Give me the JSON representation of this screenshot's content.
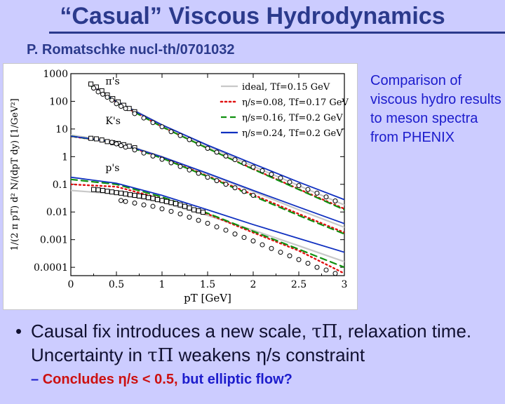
{
  "slide": {
    "title": "“Casual” Viscous Hydrodynamics",
    "subtitle": "P. Romatschke nucl-th/0701032",
    "comment": "Comparison of viscous hydro results to meson spectra from PHENIX",
    "bullet1": {
      "marker": "•",
      "part1": "Causal fix introduces a new scale,",
      "tau_symbol": "τΠ",
      "part2": ", relaxation time. Uncertainty in",
      "tau_symbol_2": "τΠ",
      "part3": "weakens",
      "eta_symbol": "η",
      "part4": "/s constraint"
    },
    "bullet2": {
      "dash": "–",
      "red_text": "Concludes η/s < 0.5,",
      "blue_text": "but elliptic flow?"
    }
  },
  "chart_data": {
    "type": "line",
    "xlabel": "pT [GeV]",
    "ylabel": "1/(2 π pT) d² N/(dpT dy) [1/GeV²]",
    "xlim": [
      0,
      3
    ],
    "ylim": [
      5e-05,
      1000
    ],
    "y_scale": "log",
    "x_ticks": [
      "0",
      "0.5",
      "1",
      "1.5",
      "2",
      "2.5",
      "3"
    ],
    "y_ticks": [
      "0.0001",
      "0.001",
      "0.01",
      "0.1",
      "1",
      "10",
      "100",
      "1000"
    ],
    "legend_position": "top-right",
    "legend": [
      {
        "label": "ideal, Tf=0.15 GeV",
        "color": "#c8c8c8",
        "style": "solid"
      },
      {
        "label": "η/s=0.08, Tf=0.17 GeV",
        "color": "#e01010",
        "style": "dotted"
      },
      {
        "label": "η/s=0.16, Tf=0.2 GeV",
        "color": "#109010",
        "style": "dashed"
      },
      {
        "label": "η/s=0.24, Tf=0.2 GeV",
        "color": "#1030c0",
        "style": "solid"
      }
    ],
    "particles": [
      {
        "label": "π's",
        "label_pos": {
          "x": 0.38,
          "y": 400
        },
        "curves": {
          "ideal": [
            [
              0.2,
              500
            ],
            [
              0.5,
              105
            ],
            [
              1.0,
              14
            ],
            [
              1.5,
              2.4
            ],
            [
              2.0,
              0.45
            ],
            [
              2.5,
              0.09
            ],
            [
              3.0,
              0.018
            ]
          ],
          "eta008": [
            [
              0.2,
              430
            ],
            [
              0.5,
              92
            ],
            [
              1.0,
              12
            ],
            [
              1.5,
              2.0
            ],
            [
              2.0,
              0.36
            ],
            [
              2.5,
              0.067
            ],
            [
              3.0,
              0.013
            ]
          ],
          "eta016": [
            [
              0.2,
              400
            ],
            [
              0.5,
              90
            ],
            [
              1.0,
              12
            ],
            [
              1.5,
              2.0
            ],
            [
              2.0,
              0.35
            ],
            [
              2.5,
              0.065
            ],
            [
              3.0,
              0.012
            ]
          ],
          "eta024": [
            [
              0.2,
              420
            ],
            [
              0.5,
              96
            ],
            [
              1.0,
              14
            ],
            [
              1.5,
              2.6
            ],
            [
              2.0,
              0.55
            ],
            [
              2.5,
              0.12
            ],
            [
              3.0,
              0.028
            ]
          ]
        },
        "squares": [
          [
            0.22,
            420
          ],
          [
            0.28,
            330
          ],
          [
            0.34,
            240
          ],
          [
            0.4,
            170
          ],
          [
            0.46,
            125
          ],
          [
            0.52,
            95
          ],
          [
            0.58,
            72
          ],
          [
            0.64,
            55
          ],
          [
            0.7,
            42
          ]
        ],
        "circles": [
          [
            0.25,
            300
          ],
          [
            0.3,
            220
          ],
          [
            0.35,
            180
          ],
          [
            0.4,
            140
          ],
          [
            0.45,
            110
          ],
          [
            0.5,
            82
          ],
          [
            0.55,
            66
          ],
          [
            0.6,
            55
          ],
          [
            0.7,
            36
          ],
          [
            0.8,
            25
          ],
          [
            0.9,
            17
          ],
          [
            1.0,
            12
          ],
          [
            1.1,
            8
          ],
          [
            1.2,
            5.8
          ],
          [
            1.3,
            4.1
          ],
          [
            1.4,
            2.9
          ],
          [
            1.5,
            2.0
          ],
          [
            1.6,
            1.45
          ],
          [
            1.7,
            1.05
          ],
          [
            1.8,
            0.78
          ],
          [
            1.9,
            0.58
          ],
          [
            2.0,
            0.42
          ],
          [
            2.1,
            0.31
          ],
          [
            2.2,
            0.23
          ],
          [
            2.3,
            0.17
          ],
          [
            2.4,
            0.12
          ],
          [
            2.5,
            0.09
          ],
          [
            2.6,
            0.065
          ],
          [
            2.7,
            0.048
          ],
          [
            2.8,
            0.035
          ],
          [
            2.9,
            0.025
          ]
        ]
      },
      {
        "label": "K's",
        "label_pos": {
          "x": 0.38,
          "y": 15
        },
        "curves": {
          "ideal": [
            [
              0.0,
              6
            ],
            [
              0.5,
              3.5
            ],
            [
              1.0,
              1.0
            ],
            [
              1.5,
              0.24
            ],
            [
              2.0,
              0.055
            ],
            [
              2.5,
              0.012
            ],
            [
              3.0,
              0.0028
            ]
          ],
          "eta008": [
            [
              0.0,
              5.4
            ],
            [
              0.5,
              3.2
            ],
            [
              1.0,
              0.92
            ],
            [
              1.5,
              0.2
            ],
            [
              2.0,
              0.042
            ],
            [
              2.5,
              0.0085
            ],
            [
              3.0,
              0.0018
            ]
          ],
          "eta016": [
            [
              0.0,
              5.5
            ],
            [
              0.5,
              3.2
            ],
            [
              1.0,
              0.88
            ],
            [
              1.5,
              0.19
            ],
            [
              2.0,
              0.038
            ],
            [
              2.5,
              0.0075
            ],
            [
              3.0,
              0.0016
            ]
          ],
          "eta024": [
            [
              0.0,
              5.5
            ],
            [
              0.5,
              3.3
            ],
            [
              1.0,
              0.98
            ],
            [
              1.5,
              0.25
            ],
            [
              2.0,
              0.06
            ],
            [
              2.5,
              0.015
            ],
            [
              3.0,
              0.0038
            ]
          ]
        },
        "squares": [
          [
            0.22,
            4.6
          ],
          [
            0.28,
            4.4
          ],
          [
            0.34,
            4.0
          ],
          [
            0.4,
            3.5
          ],
          [
            0.46,
            3.2
          ],
          [
            0.52,
            3.0
          ],
          [
            0.58,
            2.7
          ],
          [
            0.64,
            2.4
          ],
          [
            0.7,
            2.1
          ]
        ],
        "circles": [
          [
            0.45,
            3.3
          ],
          [
            0.5,
            2.9
          ],
          [
            0.55,
            2.5
          ],
          [
            0.6,
            2.2
          ],
          [
            0.7,
            1.75
          ],
          [
            0.8,
            1.35
          ],
          [
            0.9,
            1.05
          ],
          [
            1.0,
            0.8
          ],
          [
            1.1,
            0.6
          ],
          [
            1.2,
            0.44
          ],
          [
            1.3,
            0.33
          ],
          [
            1.4,
            0.25
          ],
          [
            1.5,
            0.18
          ],
          [
            1.6,
            0.135
          ],
          [
            1.7,
            0.1
          ],
          [
            1.8,
            0.075
          ],
          [
            1.9,
            0.055
          ],
          [
            2.0,
            0.04
          ]
        ]
      },
      {
        "label": "p's",
        "label_pos": {
          "x": 0.38,
          "y": 0.3
        },
        "curves": {
          "ideal": [
            [
              0.0,
              0.06
            ],
            [
              0.5,
              0.045
            ],
            [
              1.0,
              0.022
            ],
            [
              1.5,
              0.0075
            ],
            [
              2.0,
              0.0022
            ],
            [
              2.5,
              0.0006
            ],
            [
              3.0,
              0.00016
            ]
          ],
          "eta008": [
            [
              0.0,
              0.1
            ],
            [
              0.5,
              0.082
            ],
            [
              1.0,
              0.03
            ],
            [
              1.5,
              0.0085
            ],
            [
              2.0,
              0.0018
            ],
            [
              2.5,
              0.0004
            ],
            [
              3.0,
              6e-05
            ]
          ],
          "eta016": [
            [
              0.0,
              0.15
            ],
            [
              0.5,
              0.1
            ],
            [
              1.0,
              0.035
            ],
            [
              1.5,
              0.009
            ],
            [
              2.0,
              0.002
            ],
            [
              2.5,
              0.00045
            ],
            [
              3.0,
              0.0001
            ]
          ],
          "eta024": [
            [
              0.0,
              0.18
            ],
            [
              0.5,
              0.11
            ],
            [
              1.0,
              0.04
            ],
            [
              1.5,
              0.012
            ],
            [
              2.0,
              0.0035
            ],
            [
              2.5,
              0.0011
            ],
            [
              3.0,
              0.00035
            ]
          ]
        },
        "squares": [
          [
            0.25,
            0.065
          ],
          [
            0.3,
            0.063
          ],
          [
            0.35,
            0.06
          ],
          [
            0.4,
            0.056
          ],
          [
            0.45,
            0.053
          ],
          [
            0.5,
            0.05
          ],
          [
            0.55,
            0.048
          ],
          [
            0.6,
            0.045
          ],
          [
            0.65,
            0.042
          ],
          [
            0.7,
            0.04
          ],
          [
            0.75,
            0.038
          ],
          [
            0.8,
            0.036
          ],
          [
            0.85,
            0.033
          ],
          [
            0.9,
            0.031
          ],
          [
            0.95,
            0.028
          ],
          [
            1.0,
            0.026
          ],
          [
            1.05,
            0.024
          ],
          [
            1.1,
            0.022
          ],
          [
            1.15,
            0.02
          ],
          [
            1.2,
            0.018
          ],
          [
            1.25,
            0.016
          ],
          [
            1.3,
            0.014
          ],
          [
            1.35,
            0.012
          ],
          [
            1.4,
            0.011
          ],
          [
            1.45,
            0.0098
          ]
        ],
        "circles": [
          [
            0.55,
            0.026
          ],
          [
            0.6,
            0.024
          ],
          [
            0.7,
            0.021
          ],
          [
            0.8,
            0.018
          ],
          [
            0.9,
            0.016
          ],
          [
            1.0,
            0.013
          ],
          [
            1.1,
            0.0105
          ],
          [
            1.2,
            0.0085
          ],
          [
            1.3,
            0.0065
          ],
          [
            1.4,
            0.005
          ],
          [
            1.5,
            0.0039
          ],
          [
            1.6,
            0.0029
          ],
          [
            1.7,
            0.0022
          ],
          [
            1.8,
            0.0016
          ],
          [
            1.9,
            0.0012
          ],
          [
            2.0,
            0.0009
          ],
          [
            2.1,
            0.00065
          ],
          [
            2.2,
            0.00048
          ],
          [
            2.3,
            0.00035
          ],
          [
            2.4,
            0.00026
          ],
          [
            2.5,
            0.00019
          ],
          [
            2.6,
            0.00014
          ],
          [
            2.7,
            0.0001
          ],
          [
            2.8,
            8e-05
          ],
          [
            2.9,
            6e-05
          ]
        ]
      }
    ]
  }
}
